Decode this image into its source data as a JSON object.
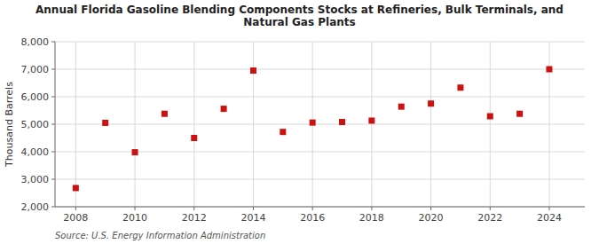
{
  "chart_data": {
    "type": "scatter",
    "title": "Annual Florida Gasoline Blending Components Stocks at Refineries, Bulk Terminals, and Natural Gas Plants",
    "ylabel": "Thousand Barrels",
    "source": "Source: U.S. Energy Information Administration",
    "x": [
      2008,
      2009,
      2010,
      2011,
      2012,
      2013,
      2014,
      2015,
      2016,
      2017,
      2018,
      2019,
      2020,
      2021,
      2022,
      2023,
      2024
    ],
    "values": [
      2680,
      5050,
      3980,
      5380,
      4500,
      5560,
      6950,
      4720,
      5060,
      5080,
      5130,
      5640,
      5750,
      6330,
      5290,
      5380,
      7000
    ],
    "color": "#cc1111",
    "marker": "square",
    "xlim": [
      2007.3,
      2025.2
    ],
    "xticks": [
      2008,
      2010,
      2012,
      2014,
      2016,
      2018,
      2020,
      2022,
      2024
    ],
    "ylim": [
      2000,
      8000
    ],
    "yticks": [
      {
        "value": 2000,
        "label": "2,000"
      },
      {
        "value": 3000,
        "label": "3,000"
      },
      {
        "value": 4000,
        "label": "4,000"
      },
      {
        "value": 5000,
        "label": "5,000"
      },
      {
        "value": 6000,
        "label": "6,000"
      },
      {
        "value": 7000,
        "label": "7,000"
      },
      {
        "value": 8000,
        "label": "8,000"
      }
    ],
    "grid": true
  }
}
